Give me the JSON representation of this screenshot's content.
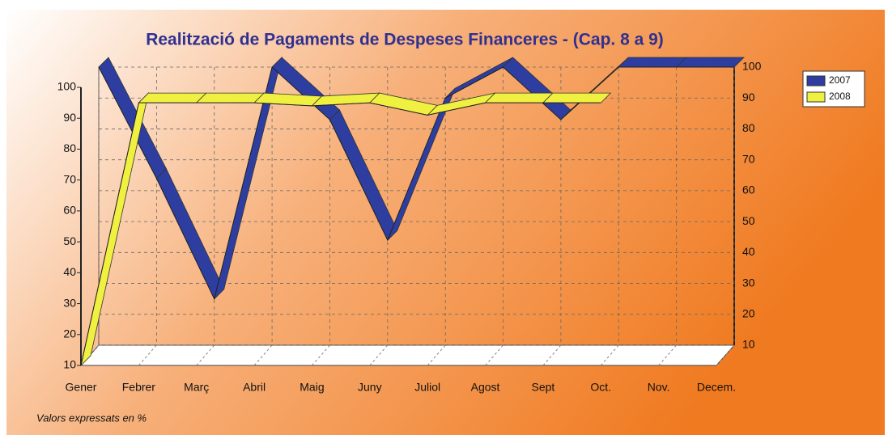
{
  "chart_data": {
    "type": "line",
    "title": "Realització de Pagaments de Despeses Financeres - (Cap. 8 a 9)",
    "categories": [
      "Gener",
      "Febrer",
      "Març",
      "Abril",
      "Maig",
      "Juny",
      "Juliol",
      "Agost",
      "Sept",
      "Oct.",
      "Nov.",
      "Decem."
    ],
    "series": [
      {
        "name": "2007",
        "color": "#2e3ea0",
        "axis": "y2",
        "values": [
          100,
          64,
          25,
          100,
          83,
          44,
          90,
          100,
          83,
          100,
          100,
          100
        ]
      },
      {
        "name": "2008",
        "color": "#f0f040",
        "values": [
          10,
          95,
          95,
          95,
          94,
          95,
          91,
          95,
          95,
          95,
          null,
          null
        ]
      }
    ],
    "ylim": [
      10,
      100
    ],
    "yticks": [
      10,
      20,
      30,
      40,
      50,
      60,
      70,
      80,
      90,
      100
    ],
    "y2lim": [
      10,
      100
    ],
    "y2ticks": [
      10,
      20,
      30,
      40,
      50,
      60,
      70,
      80,
      90,
      100
    ],
    "grid": true,
    "legend": "right",
    "note": "Valors expressats en %"
  }
}
